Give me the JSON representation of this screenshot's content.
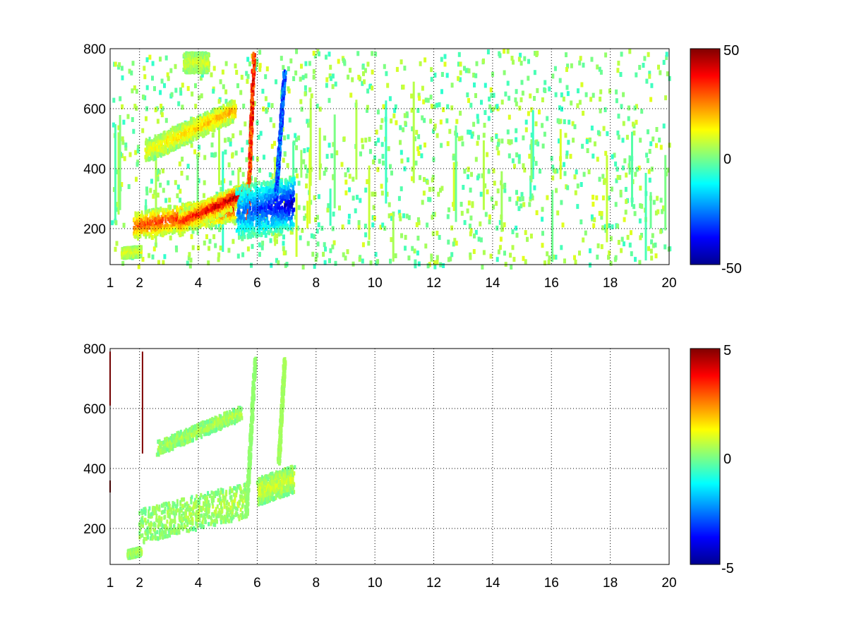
{
  "colormap": "jet",
  "chart_data": [
    {
      "type": "heatmap",
      "title": "",
      "xlabel": "",
      "ylabel": "",
      "xlim": [
        1,
        20
      ],
      "ylim": [
        80,
        800
      ],
      "x_ticks": [
        1,
        2,
        4,
        6,
        8,
        10,
        12,
        14,
        16,
        18,
        20
      ],
      "x_tick_labels": [
        "1",
        "2",
        "4",
        "6",
        "8",
        "10",
        "12",
        "14",
        "16",
        "18",
        "20"
      ],
      "y_ticks": [
        200,
        400,
        600,
        800
      ],
      "y_tick_labels": [
        "200",
        "400",
        "600",
        "800"
      ],
      "grid": true,
      "colorbar": {
        "range": [
          -50,
          50
        ],
        "tick_labels": [
          "50",
          "0",
          "-50"
        ]
      },
      "features": [
        {
          "x": [
            1.8,
            5.2
          ],
          "y_start": 215,
          "y_end": 275,
          "width": 55,
          "value_start": 30,
          "value_end": 40
        },
        {
          "x": [
            3.3,
            5.7
          ],
          "y_start": 225,
          "y_end": 330,
          "width": 45,
          "value_start": 35,
          "value_end": 50
        },
        {
          "x": [
            2.2,
            5.2
          ],
          "y_start": 465,
          "y_end": 600,
          "width": 45,
          "value_start": 12,
          "value_end": 22
        },
        {
          "x": [
            5.65,
            5.85
          ],
          "y_start": 220,
          "y_end": 780,
          "width": 0,
          "value_start": 40,
          "value_end": 40
        },
        {
          "x": [
            5.3,
            7.2
          ],
          "y_start": 260,
          "y_end": 290,
          "width": 110,
          "value_start": -25,
          "value_end": -45
        },
        {
          "x": [
            6.6,
            6.9
          ],
          "y_start": 300,
          "y_end": 720,
          "width": 0,
          "value_start": -35,
          "value_end": -35
        },
        {
          "x": [
            3.5,
            4.3
          ],
          "y_start": 760,
          "y_end": 760,
          "width": 40,
          "value_start": 8,
          "value_end": 8
        },
        {
          "x": [
            1.4,
            2.0
          ],
          "y_start": 125,
          "y_end": 130,
          "width": 20,
          "value_start": 12,
          "value_end": 12
        }
      ],
      "noise": {
        "x": [
          1,
          20
        ],
        "value_range": [
          -8,
          10
        ]
      }
    },
    {
      "type": "heatmap",
      "title": "",
      "xlabel": "",
      "ylabel": "",
      "xlim": [
        1,
        20
      ],
      "ylim": [
        80,
        800
      ],
      "x_ticks": [
        1,
        2,
        4,
        6,
        8,
        10,
        12,
        14,
        16,
        18,
        20
      ],
      "x_tick_labels": [
        "1",
        "2",
        "4",
        "6",
        "8",
        "10",
        "12",
        "14",
        "16",
        "18",
        "20"
      ],
      "y_ticks": [
        200,
        400,
        600,
        800
      ],
      "y_tick_labels": [
        "200",
        "400",
        "600",
        "800"
      ],
      "grid": true,
      "colorbar": {
        "range": [
          -5,
          5
        ],
        "tick_labels": [
          "5",
          "0",
          "-5"
        ]
      },
      "features": [
        {
          "x": [
            2.0,
            5.6
          ],
          "y_start": 215,
          "y_end": 300,
          "width": 70,
          "value_start": 0.3,
          "value_end": 0.6
        },
        {
          "x": [
            2.6,
            5.4
          ],
          "y_start": 475,
          "y_end": 590,
          "width": 28,
          "value_start": 0.4,
          "value_end": 0.5
        },
        {
          "x": [
            5.6,
            5.9
          ],
          "y_start": 240,
          "y_end": 770,
          "width": 0,
          "value_start": 0.2,
          "value_end": 0.2
        },
        {
          "x": [
            6.0,
            7.2
          ],
          "y_start": 330,
          "y_end": 370,
          "width": 55,
          "value_start": 0.8,
          "value_end": 0.8
        },
        {
          "x": [
            6.7,
            6.9
          ],
          "y_start": 420,
          "y_end": 760,
          "width": 0,
          "value_start": 0.4,
          "value_end": 0.4
        },
        {
          "x": [
            1.6,
            2.0
          ],
          "y_start": 120,
          "y_end": 130,
          "width": 15,
          "value_start": 0.5,
          "value_end": 0.5
        }
      ],
      "spikes": [
        {
          "x": 2.1,
          "y": [
            450,
            790
          ],
          "value": 5
        },
        {
          "x": 1.0,
          "y": [
            610,
            790
          ],
          "value": 4
        },
        {
          "x": 1.0,
          "y": [
            320,
            360
          ],
          "value": 5
        }
      ]
    }
  ]
}
